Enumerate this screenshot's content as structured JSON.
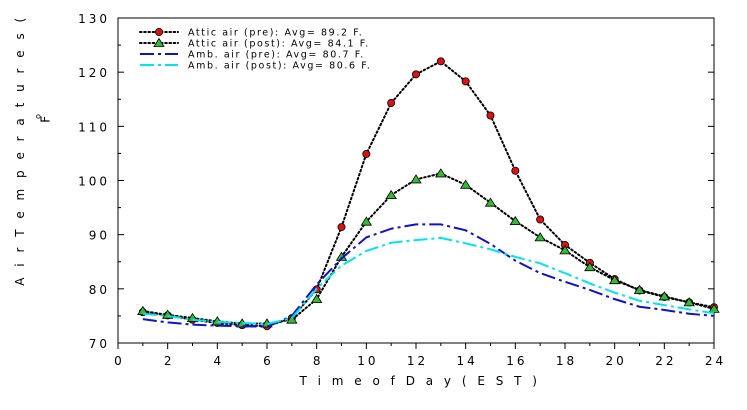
{
  "chart_data": {
    "type": "line",
    "xlabel": "T i m e  o f  D a y  ( E S T )",
    "ylabel": "A i r  T e m p e r a t u r e s  (",
    "xlim": [
      0,
      24
    ],
    "ylim": [
      70,
      130
    ],
    "x_ticks": [
      0,
      2,
      4,
      6,
      8,
      10,
      12,
      14,
      16,
      18,
      20,
      22,
      24
    ],
    "y_ticks": [
      70,
      80,
      90,
      100,
      110,
      120,
      130
    ],
    "grid": false,
    "legend_position": "top-left",
    "series": [
      {
        "name": "Attic air (pre): Avg= 89.2 F.",
        "color": "#000000",
        "marker": "circle",
        "marker_fill": "#dd1111",
        "line_style": "dotted",
        "x": [
          1,
          2,
          3,
          4,
          5,
          6,
          7,
          8,
          9,
          10,
          11,
          12,
          13,
          14,
          15,
          16,
          17,
          18,
          19,
          20,
          21,
          22,
          23,
          24
        ],
        "values": [
          75.7,
          75.1,
          74.3,
          73.7,
          73.3,
          73.1,
          74.6,
          79.9,
          91.4,
          104.9,
          114.3,
          119.6,
          122.0,
          118.3,
          112.0,
          101.8,
          92.8,
          88.1,
          84.8,
          81.8,
          79.7,
          78.5,
          77.5,
          76.6
        ]
      },
      {
        "name": "Attic air (post): Avg= 84.1 F.",
        "color": "#000000",
        "marker": "triangle",
        "marker_fill": "#33bb33",
        "line_style": "dotted",
        "x": [
          1,
          2,
          3,
          4,
          5,
          6,
          7,
          8,
          9,
          10,
          11,
          12,
          13,
          14,
          15,
          16,
          17,
          18,
          19,
          20,
          21,
          22,
          23,
          24
        ],
        "values": [
          75.9,
          75.2,
          74.6,
          74.0,
          73.6,
          73.6,
          74.3,
          78.1,
          85.9,
          92.4,
          97.3,
          100.2,
          101.3,
          99.2,
          95.9,
          92.5,
          89.5,
          87.1,
          84.0,
          81.6,
          79.8,
          78.6,
          77.5,
          76.3
        ]
      },
      {
        "name": "Amb. air (pre): Avg= 80.7 F.",
        "color": "#1111cc",
        "marker": "none",
        "line_style": "dashdot",
        "x": [
          1,
          2,
          3,
          4,
          5,
          6,
          7,
          8,
          9,
          10,
          11,
          12,
          13,
          14,
          15,
          16,
          17,
          18,
          19,
          20,
          21,
          22,
          23,
          24
        ],
        "values": [
          74.4,
          73.8,
          73.4,
          73.2,
          73.1,
          73.0,
          75.0,
          80.8,
          85.6,
          89.5,
          91.1,
          91.9,
          91.9,
          90.8,
          88.3,
          85.2,
          82.9,
          81.3,
          79.8,
          78.1,
          76.7,
          76.1,
          75.4,
          75.0
        ]
      },
      {
        "name": "Amb. air (post): Avg= 80.6 F.",
        "color": "#00e5ee",
        "marker": "none",
        "line_style": "dashdot",
        "x": [
          1,
          2,
          3,
          4,
          5,
          6,
          7,
          8,
          9,
          10,
          11,
          12,
          13,
          14,
          15,
          16,
          17,
          18,
          19,
          20,
          21,
          22,
          23,
          24
        ],
        "values": [
          75.4,
          75.0,
          74.3,
          73.9,
          73.7,
          73.5,
          74.6,
          80.0,
          84.3,
          87.0,
          88.5,
          89.0,
          89.4,
          88.4,
          87.3,
          85.9,
          84.7,
          82.9,
          81.0,
          79.3,
          77.8,
          77.0,
          76.2,
          75.5
        ]
      }
    ],
    "annotations": [
      {
        "text": "o",
        "at": [
          -2.75,
          111.8
        ]
      },
      {
        "text": "F",
        "at": [
          -2.75,
          111.3
        ]
      }
    ]
  }
}
